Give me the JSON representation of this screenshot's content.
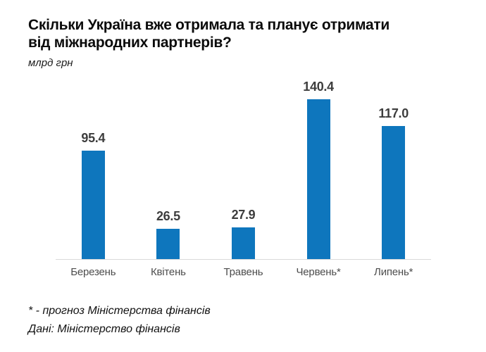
{
  "header": {
    "title_line1": "Скільки Україна вже отримала та планує отримати",
    "title_line2": "від міжнародних партнерів?",
    "subtitle": "млрд грн"
  },
  "chart_data": {
    "type": "bar",
    "title": "Скільки Україна вже отримала та планує отримати від міжнародних партнерів?",
    "xlabel": "",
    "ylabel": "млрд грн",
    "categories": [
      "Березень",
      "Квітень",
      "Травень",
      "Червень*",
      "Липень*"
    ],
    "values": [
      95.4,
      26.5,
      27.9,
      140.4,
      117.0
    ],
    "labels": [
      "95.4",
      "26.5",
      "27.9",
      "140.4",
      "117.0"
    ],
    "ylim": [
      0,
      150
    ],
    "grid": false,
    "legend": false,
    "bar_color": "#0e76bd",
    "axis_line_color": "#d9d9d9",
    "value_label_color": "#3d3d3d",
    "category_label_color": "#4d4d4d"
  },
  "footer": {
    "footnote": "* - прогноз Міністерства фінансів",
    "source": "Дані: Міністерство фінансів"
  }
}
